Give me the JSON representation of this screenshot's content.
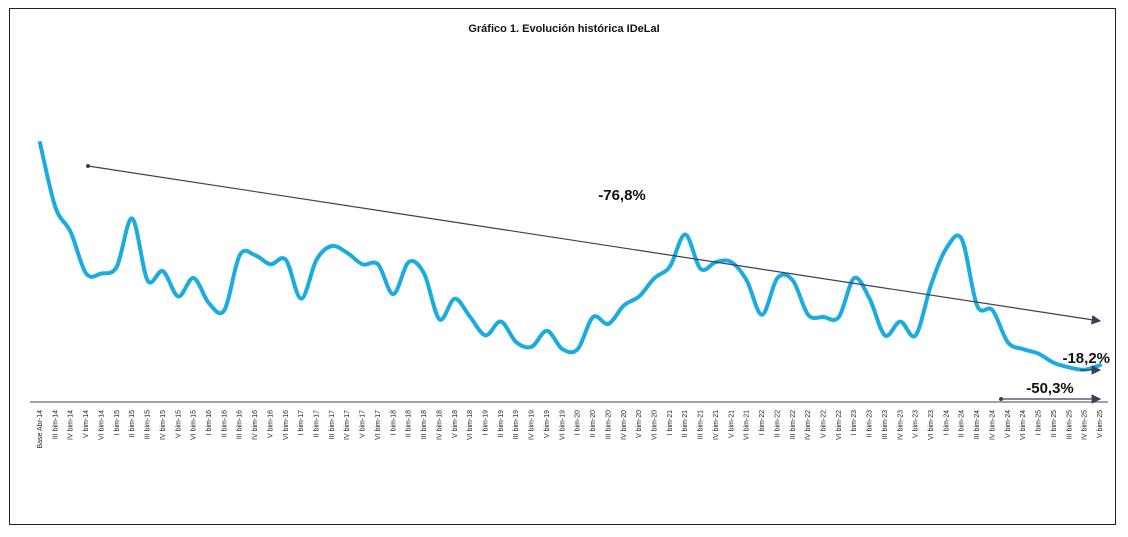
{
  "chart_data": {
    "type": "line",
    "title": "Gráfico 1. Evolución histórica IDeLaI",
    "xlabel": "",
    "ylabel": "",
    "ylim": [
      0,
      110
    ],
    "categories": [
      "Base Abr-14",
      "III bim-14",
      "IV bim-14",
      "V bim-14",
      "VI bim-14",
      "I bim-15",
      "II bim-15",
      "III bim-15",
      "IV bim-15",
      "V bim-15",
      "VI bim-15",
      "I bim-16",
      "II bim-16",
      "III bim-16",
      "IV bim-16",
      "V bim-16",
      "VI bim-16",
      "I bim-17",
      "II bim-17",
      "III bim-17",
      "IV bim-17",
      "V bim-17",
      "VI bim-17",
      "I bim-18",
      "II bim-18",
      "III bim-18",
      "IV bim-18",
      "V bim-18",
      "VI bim-18",
      "I bim-19",
      "II bim-19",
      "III bim-19",
      "IV bim-19",
      "V bim-19",
      "VI bim-19",
      "I bim-20",
      "II bim-20",
      "III bim-20",
      "IV bim-20",
      "V bim-20",
      "VI bim-20",
      "I bim-21",
      "II bim-21",
      "III bim-21",
      "IV bim-21",
      "V bim-21",
      "VI bim-21",
      "I bim-22",
      "II bim-22",
      "III bim-22",
      "IV bim-22",
      "V bim-22",
      "VI bim-22",
      "I bim-23",
      "II bim-23",
      "III bim-23",
      "IV bim-23",
      "V bim-23",
      "VI bim-23",
      "I bim-24",
      "II bim-24",
      "III bim-24",
      "IV bim-24",
      "V bim-24",
      "VI bim-24",
      "I bim-25",
      "II bim-25",
      "III bim-25",
      "IV bim-25",
      "V bim-25"
    ],
    "series": [
      {
        "name": "IDeLaI",
        "color": "#1aabe0",
        "values": [
          100,
          72,
          61,
          43,
          43,
          46,
          67,
          40,
          44,
          33,
          41,
          30,
          27,
          51,
          51,
          47,
          49,
          32,
          49,
          55,
          52,
          47,
          47,
          34,
          48,
          43,
          23,
          32,
          24,
          16,
          22,
          13,
          11,
          18,
          10,
          10,
          24,
          21,
          29,
          33,
          41,
          46,
          60,
          45,
          48,
          48,
          40,
          25,
          41,
          40,
          25,
          24,
          24,
          41,
          32,
          16,
          22,
          16,
          38,
          54,
          58,
          29,
          27,
          13,
          10,
          8,
          4,
          2,
          1,
          3
        ],
        "line_overrides": {
          "display_values": true
        }
      }
    ],
    "trend_line": {
      "label": "-76,8%",
      "color": "#3a3f5c",
      "direction": "down"
    },
    "annotations": [
      {
        "label": "-18,2%"
      },
      {
        "label": "-50,3%"
      }
    ]
  }
}
